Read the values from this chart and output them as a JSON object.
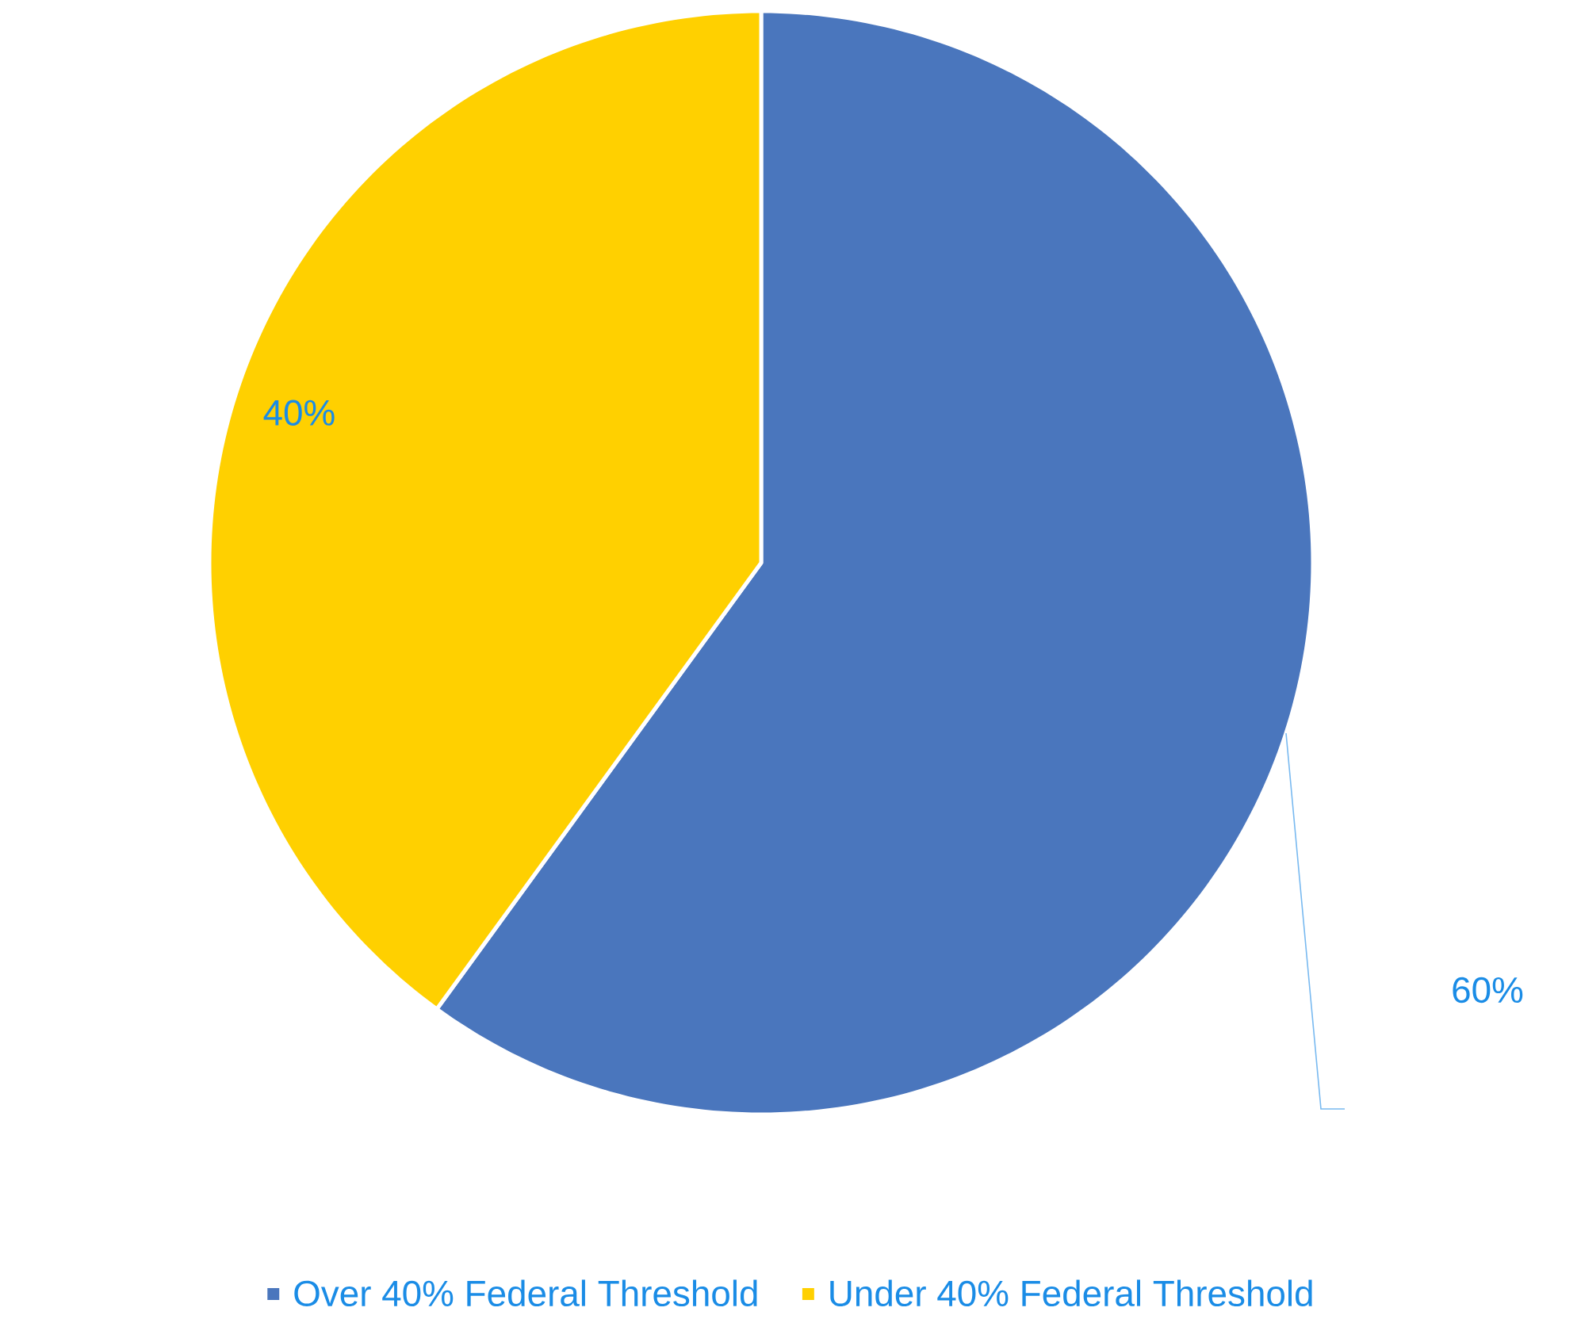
{
  "chart_data": {
    "type": "pie",
    "categories": [
      "Over 40% Federal Threshold",
      "Under 40% Federal Threshold"
    ],
    "values": [
      60,
      40
    ],
    "colors": [
      "#4a76bd",
      "#ffd000"
    ],
    "value_labels": [
      "60%",
      "40%"
    ],
    "legend": "bottom"
  }
}
